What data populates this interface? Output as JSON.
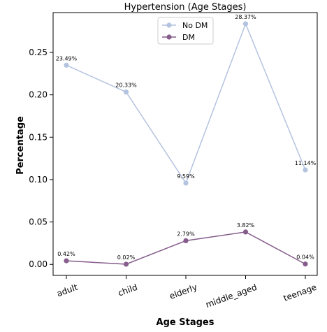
{
  "chart_data": {
    "type": "line",
    "title": "Hypertension  (Age Stages)",
    "xlabel": "Age Stages",
    "ylabel": "Percentage",
    "categories": [
      "adult",
      "child",
      "elderly",
      "middle_aged",
      "teenage"
    ],
    "ylim": [
      -0.013,
      0.297
    ],
    "yticks": [
      0.0,
      0.05,
      0.1,
      0.15,
      0.2,
      0.25
    ],
    "ytick_labels": [
      "0.00",
      "0.05",
      "0.10",
      "0.15",
      "0.20",
      "0.25"
    ],
    "grid": false,
    "legend_position": "top-center",
    "series": [
      {
        "name": "No DM",
        "color": "#b4c3df",
        "values": [
          0.2349,
          0.2033,
          0.0959,
          0.2837,
          0.1114
        ],
        "labels": [
          "23.49%",
          "20.33%",
          "9.59%",
          "28.37%",
          "11.14%"
        ]
      },
      {
        "name": "DM",
        "color": "#865d8c",
        "values": [
          0.0042,
          0.0002,
          0.0279,
          0.0382,
          0.0004
        ],
        "labels": [
          "0.42%",
          "0.02%",
          "2.79%",
          "3.82%",
          "0.04%"
        ]
      }
    ]
  }
}
